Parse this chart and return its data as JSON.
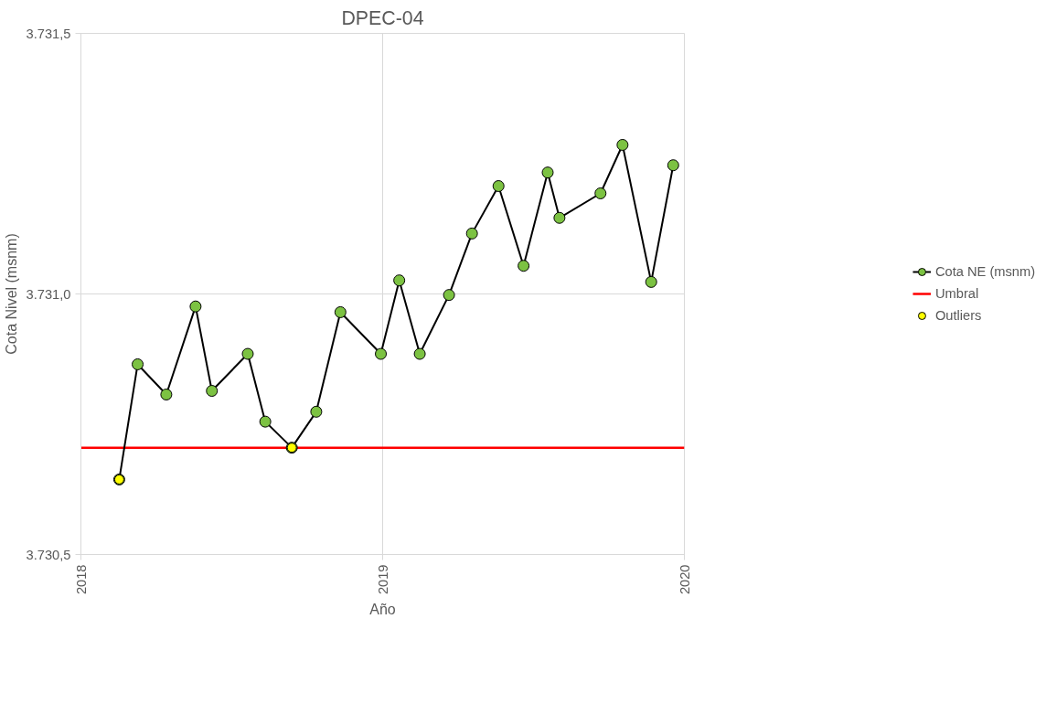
{
  "chart_data": {
    "type": "line",
    "title": "DPEC-04",
    "xlabel": "Año",
    "ylabel": "Cota Nivel (msnm)",
    "xlim": [
      2018,
      2020
    ],
    "xticks": [
      2018,
      2019,
      2020
    ],
    "ylim": [
      3730.5,
      3731.5
    ],
    "yticks": [
      {
        "value": 3730.5,
        "label": "3.730,5"
      },
      {
        "value": 3731.0,
        "label": "3.731,0"
      },
      {
        "value": 3731.5,
        "label": "3.731,5"
      }
    ],
    "grid": true,
    "legend": "right",
    "marker": "circle",
    "line_style": "solid",
    "series": [
      {
        "name": "Cota NE (msnm)",
        "color": "#7cc242",
        "x": [
          2018.127,
          2018.188,
          2018.283,
          2018.38,
          2018.434,
          2018.553,
          2018.611,
          2018.699,
          2018.78,
          2018.86,
          2018.994,
          2019.055,
          2019.123,
          2019.22,
          2019.296,
          2019.384,
          2019.467,
          2019.547,
          2019.586,
          2019.722,
          2019.795,
          2019.89,
          2019.963
        ],
        "values": [
          3730.644,
          3730.865,
          3730.807,
          3730.976,
          3730.814,
          3730.885,
          3730.755,
          3730.705,
          3730.774,
          3730.965,
          3730.885,
          3731.026,
          3730.885,
          3730.998,
          3731.116,
          3731.207,
          3731.054,
          3731.233,
          3731.146,
          3731.193,
          3731.286,
          3731.023,
          3731.247
        ]
      },
      {
        "name": "Outliers",
        "type": "scatter",
        "color": "#ffff00",
        "x": [
          2018.127,
          2018.699
        ],
        "values": [
          3730.644,
          3730.705
        ]
      }
    ],
    "ref_lines": [
      {
        "axis": "y",
        "value": 3730.705,
        "label": "Umbral",
        "color": "#ff0000",
        "line_style": "solid"
      }
    ]
  }
}
